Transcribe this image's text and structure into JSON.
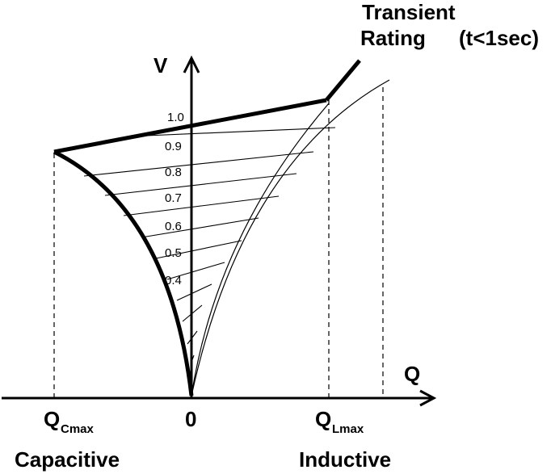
{
  "axes": {
    "v_label": "V",
    "q_label": "Q",
    "origin_label": "0"
  },
  "voltage_ticks": [
    "1.0",
    "0.9",
    "0.8",
    "0.7",
    "0.6",
    "0.5",
    "0.4"
  ],
  "q_labels": {
    "cmax_main": "Q",
    "cmax_sub": "Cmax",
    "lmax_main": "Q",
    "lmax_sub": "Lmax"
  },
  "region_labels": {
    "capacitive": "Capacitive",
    "inductive": "Inductive"
  },
  "transient": {
    "line1": "Transient",
    "line2": "Rating",
    "line3": "(t<1sec)"
  },
  "colors": {
    "ink": "#000000",
    "background": "#ffffff"
  }
}
